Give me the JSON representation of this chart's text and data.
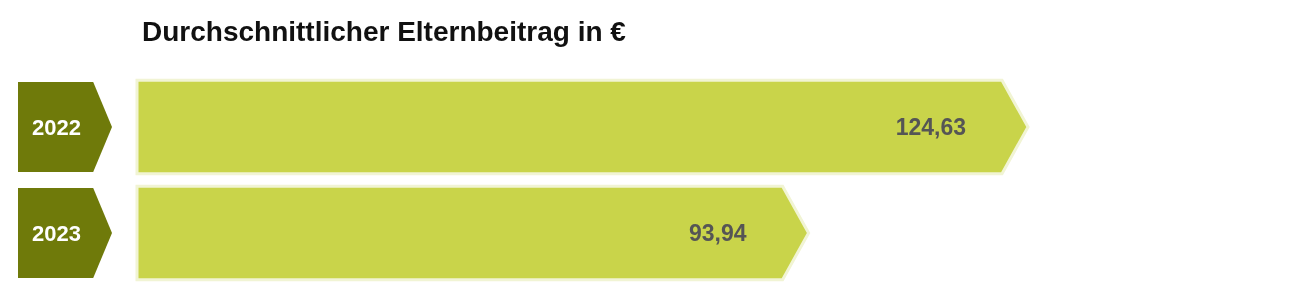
{
  "chart_data": {
    "type": "bar",
    "orientation": "horizontal",
    "title": "Durchschnittlicher Elternbeitrag in €",
    "categories": [
      "2022",
      "2023"
    ],
    "values": [
      124.63,
      93.94
    ],
    "value_labels": [
      "124,63",
      "93,94"
    ],
    "color": "#c9d44a",
    "grid": false
  }
}
